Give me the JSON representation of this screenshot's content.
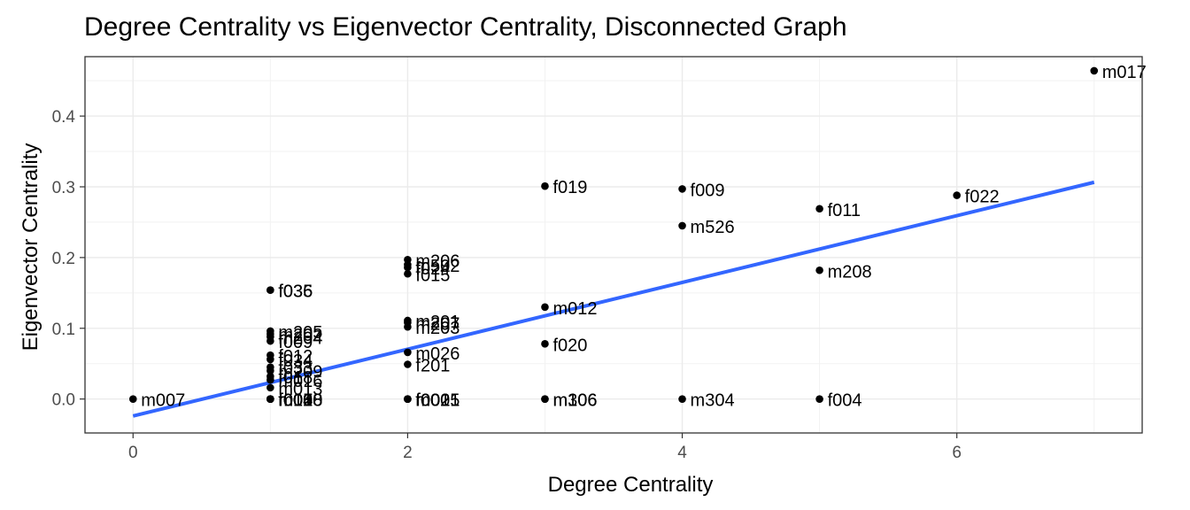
{
  "chart_data": {
    "type": "scatter",
    "title": "Degree Centrality vs Eigenvector Centrality, Disconnected Graph",
    "xlabel": "Degree Centrality",
    "ylabel": "Eigenvector Centrality",
    "xlim": [
      -0.35,
      7.35
    ],
    "ylim": [
      -0.048,
      0.484
    ],
    "x_ticks": [
      0,
      2,
      4,
      6
    ],
    "x_tick_labels": [
      "0",
      "2",
      "4",
      "6"
    ],
    "y_ticks": [
      0.0,
      0.1,
      0.2,
      0.3,
      0.4
    ],
    "y_tick_labels": [
      "0.0",
      "0.1",
      "0.2",
      "0.3",
      "0.4"
    ],
    "grid": true,
    "point_color": "#000000",
    "trend_color": "#3366ff",
    "trend_line": {
      "type": "linear",
      "intercept": -0.024,
      "slope": 0.0472
    },
    "points": [
      {
        "x": 7,
        "y": 0.464,
        "label": "m017"
      },
      {
        "x": 3,
        "y": 0.301,
        "label": "f019"
      },
      {
        "x": 4,
        "y": 0.297,
        "label": "f009"
      },
      {
        "x": 6,
        "y": 0.288,
        "label": "f022"
      },
      {
        "x": 5,
        "y": 0.269,
        "label": "f011"
      },
      {
        "x": 4,
        "y": 0.245,
        "label": "m526"
      },
      {
        "x": 5,
        "y": 0.182,
        "label": "m208"
      },
      {
        "x": 3,
        "y": 0.13,
        "label": "m012"
      },
      {
        "x": 3,
        "y": 0.078,
        "label": "f020"
      },
      {
        "x": 3,
        "y": 0.0,
        "label": "m306"
      },
      {
        "x": 3,
        "y": 0.0,
        "label": "m106"
      },
      {
        "x": 4,
        "y": 0.0,
        "label": "m304"
      },
      {
        "x": 5,
        "y": 0.0,
        "label": "f004"
      },
      {
        "x": 0,
        "y": 0.0,
        "label": "m007"
      },
      {
        "x": 2,
        "y": 0.197,
        "label": "m206"
      },
      {
        "x": 2,
        "y": 0.19,
        "label": "m502"
      },
      {
        "x": 2,
        "y": 0.186,
        "label": "f024"
      },
      {
        "x": 2,
        "y": 0.177,
        "label": "f015"
      },
      {
        "x": 2,
        "y": 0.111,
        "label": "m201"
      },
      {
        "x": 2,
        "y": 0.108,
        "label": "m207"
      },
      {
        "x": 2,
        "y": 0.102,
        "label": "m203"
      },
      {
        "x": 2,
        "y": 0.066,
        "label": "m026"
      },
      {
        "x": 2,
        "y": 0.049,
        "label": "f201"
      },
      {
        "x": 2,
        "y": 0.0,
        "label": "m005"
      },
      {
        "x": 2,
        "y": 0.0,
        "label": "f002"
      },
      {
        "x": 2,
        "y": 0.0,
        "label": "m021"
      },
      {
        "x": 2,
        "y": 0.0,
        "label": "f001"
      },
      {
        "x": 1,
        "y": 0.154,
        "label": "f036"
      },
      {
        "x": 1,
        "y": 0.154,
        "label": "f035"
      },
      {
        "x": 1,
        "y": 0.096,
        "label": "m205"
      },
      {
        "x": 1,
        "y": 0.092,
        "label": "m202"
      },
      {
        "x": 1,
        "y": 0.088,
        "label": "m204"
      },
      {
        "x": 1,
        "y": 0.082,
        "label": "f009"
      },
      {
        "x": 1,
        "y": 0.062,
        "label": "f012"
      },
      {
        "x": 1,
        "y": 0.056,
        "label": "f034"
      },
      {
        "x": 1,
        "y": 0.045,
        "label": "f033"
      },
      {
        "x": 1,
        "y": 0.04,
        "label": "m209"
      },
      {
        "x": 1,
        "y": 0.032,
        "label": "f018"
      },
      {
        "x": 1,
        "y": 0.027,
        "label": "m016"
      },
      {
        "x": 1,
        "y": 0.016,
        "label": "m013"
      },
      {
        "x": 1,
        "y": 0.0,
        "label": "f003"
      },
      {
        "x": 1,
        "y": 0.0,
        "label": "m008"
      },
      {
        "x": 1,
        "y": 0.0,
        "label": "f006"
      },
      {
        "x": 1,
        "y": 0.0,
        "label": "m010"
      },
      {
        "x": 1,
        "y": 0.0,
        "label": "f014"
      },
      {
        "x": 1,
        "y": 0.0,
        "label": "m028"
      }
    ]
  }
}
